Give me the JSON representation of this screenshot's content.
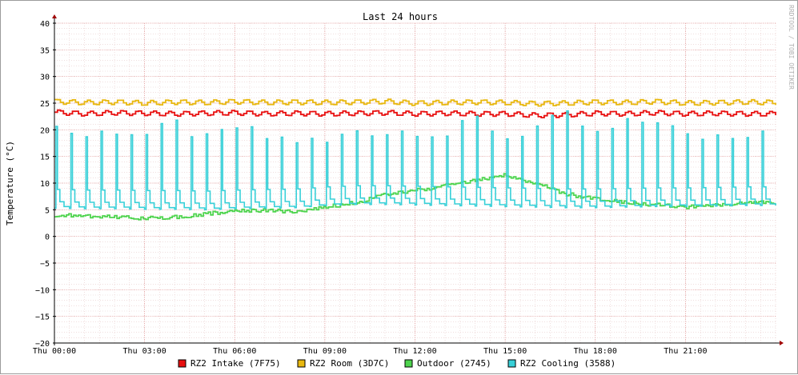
{
  "chart_data": {
    "type": "line",
    "title": "Last 24 hours",
    "ylabel": "Temperature (°C)",
    "xlabel": "",
    "watermark": "RRDTOOL / TOBI OETIKER",
    "ylim": [
      -20,
      40
    ],
    "yticks": [
      40,
      35,
      30,
      25,
      20,
      15,
      10,
      5,
      0,
      -5,
      -10,
      -15,
      -20
    ],
    "ytick_labels": [
      "40",
      "35",
      "30",
      "25",
      "20",
      "15",
      "10",
      "5",
      "0",
      "−5",
      "−10",
      "−15",
      "−20"
    ],
    "xlim": [
      0,
      24
    ],
    "xticks": [
      0,
      3,
      6,
      9,
      12,
      15,
      18,
      21
    ],
    "xtick_labels": [
      "Thu 00:00",
      "Thu 03:00",
      "Thu 06:00",
      "Thu 09:00",
      "Thu 12:00",
      "Thu 15:00",
      "Thu 18:00",
      "Thu 21:00"
    ],
    "grid": true,
    "legend_position": "bottom",
    "series": [
      {
        "name": "RZ2 Intake (7F75)",
        "color": "#e81010",
        "x": [
          0,
          1,
          2,
          3,
          4,
          5,
          6,
          7,
          8,
          9,
          10,
          11,
          12,
          13,
          14,
          15,
          16,
          17,
          18,
          19,
          20,
          21,
          22,
          23,
          24
        ],
        "y": [
          23.3,
          23.0,
          23.2,
          23.1,
          23.0,
          23.1,
          23.2,
          23.0,
          23.1,
          23.0,
          23.1,
          23.2,
          23.0,
          23.1,
          23.0,
          23.0,
          22.7,
          22.8,
          23.1,
          23.0,
          23.2,
          23.0,
          23.1,
          23.0,
          23.0
        ]
      },
      {
        "name": "RZ2 Room (3D7C)",
        "color": "#e8b810",
        "x": [
          0,
          1,
          2,
          3,
          4,
          5,
          6,
          7,
          8,
          9,
          10,
          11,
          12,
          13,
          14,
          15,
          16,
          17,
          18,
          19,
          20,
          21,
          22,
          23,
          24
        ],
        "y": [
          25.3,
          25.1,
          25.2,
          25.0,
          25.2,
          25.1,
          25.3,
          25.1,
          25.2,
          25.1,
          25.2,
          25.3,
          25.0,
          25.1,
          25.2,
          25.1,
          24.9,
          25.0,
          25.2,
          25.1,
          25.3,
          25.0,
          25.1,
          25.2,
          25.1
        ]
      },
      {
        "name": "Outdoor (2745)",
        "color": "#4ed44e",
        "x": [
          0,
          1,
          2,
          3,
          4,
          5,
          6,
          7,
          8,
          9,
          10,
          11,
          12,
          13,
          14,
          15,
          16,
          17,
          18,
          19,
          20,
          21,
          22,
          23,
          24
        ],
        "y": [
          4.0,
          3.8,
          3.6,
          3.4,
          3.6,
          4.2,
          4.8,
          4.9,
          4.6,
          5.5,
          6.3,
          7.8,
          8.6,
          9.5,
          10.5,
          11.5,
          10.0,
          8.0,
          7.0,
          6.3,
          5.9,
          5.5,
          5.8,
          6.2,
          6.5
        ]
      },
      {
        "name": "RZ2 Cooling (3588)",
        "color": "#38d0d8",
        "pattern": "periodic spikes from baseline to peak (about 2 per hour)",
        "baseline": [
          5.3,
          5.2,
          5.2,
          5.1,
          5.1,
          5.0,
          5.2,
          5.3,
          5.4,
          5.8,
          6.0,
          6.0,
          5.9,
          5.8,
          5.7,
          5.6,
          5.5,
          5.4,
          5.4,
          5.5,
          5.6,
          5.6,
          5.7,
          5.8,
          5.8
        ],
        "peak": [
          20.5,
          18.8,
          20.0,
          19.0,
          21.0,
          18.0,
          20.5,
          18.5,
          18.0,
          17.5,
          20.0,
          19.5,
          20.0,
          19.0,
          22.0,
          18.5,
          20.5,
          22.5,
          19.0,
          21.0,
          22.0,
          18.5,
          19.0,
          19.5,
          21.0
        ]
      }
    ]
  }
}
